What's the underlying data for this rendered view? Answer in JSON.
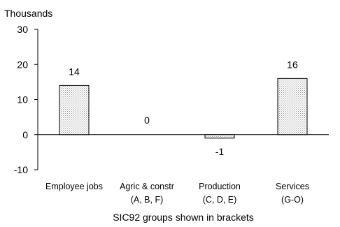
{
  "chart_data": {
    "type": "bar",
    "title": "",
    "unit_label": "Thousands",
    "xlabel": "SIC92 groups shown in brackets",
    "ylabel": "",
    "categories": [
      "Employee jobs",
      "Agric & constr",
      "Production",
      "Services"
    ],
    "category_codes": [
      "",
      "(A, B, F)",
      "(C, D, E)",
      "(G-O)"
    ],
    "values": [
      14,
      0,
      -1,
      16
    ],
    "data_labels": [
      "14",
      "0",
      "-1",
      "16"
    ],
    "ylim": [
      -10,
      30
    ],
    "yticks": [
      -10,
      0,
      10,
      20,
      30
    ],
    "grid": false,
    "legend": "none",
    "bar_fill": "#f2f2f2",
    "bar_stroke": "#000000"
  }
}
